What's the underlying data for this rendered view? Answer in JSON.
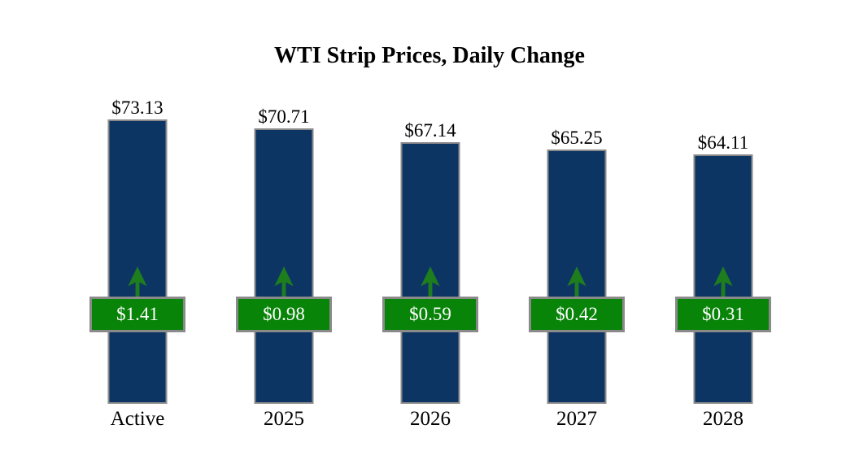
{
  "title": "WTI Strip Prices, Daily Change",
  "colors": {
    "bar_fill": "#0d3564",
    "bar_border": "#8a8a8a",
    "badge_fill": "#088408",
    "badge_border": "#8a8a8a",
    "badge_text": "#ffffff",
    "arrow_green": "#1e7e1e",
    "text": "#000000",
    "background": "#ffffff"
  },
  "chart_data": {
    "type": "bar",
    "title": "WTI Strip Prices, Daily Change",
    "categories": [
      "Active",
      "2025",
      "2026",
      "2027",
      "2028"
    ],
    "series": [
      {
        "name": "Strip Price",
        "values": [
          73.13,
          70.71,
          67.14,
          65.25,
          64.11
        ],
        "labels": [
          "$73.13",
          "$70.71",
          "$67.14",
          "$65.25",
          "$64.11"
        ]
      },
      {
        "name": "Daily Change",
        "values": [
          1.41,
          0.98,
          0.59,
          0.42,
          0.31
        ],
        "labels": [
          "$1.41",
          "$0.98",
          "$0.59",
          "$0.42",
          "$0.31"
        ],
        "direction": "up"
      }
    ],
    "xlabel": "",
    "ylabel": "",
    "ylim": [
      0,
      77
    ],
    "grid": false,
    "legend": false,
    "bar_color": "#0d3564",
    "change_badge_color": "#088408",
    "annotations": "green up arrow above each daily-change badge"
  }
}
